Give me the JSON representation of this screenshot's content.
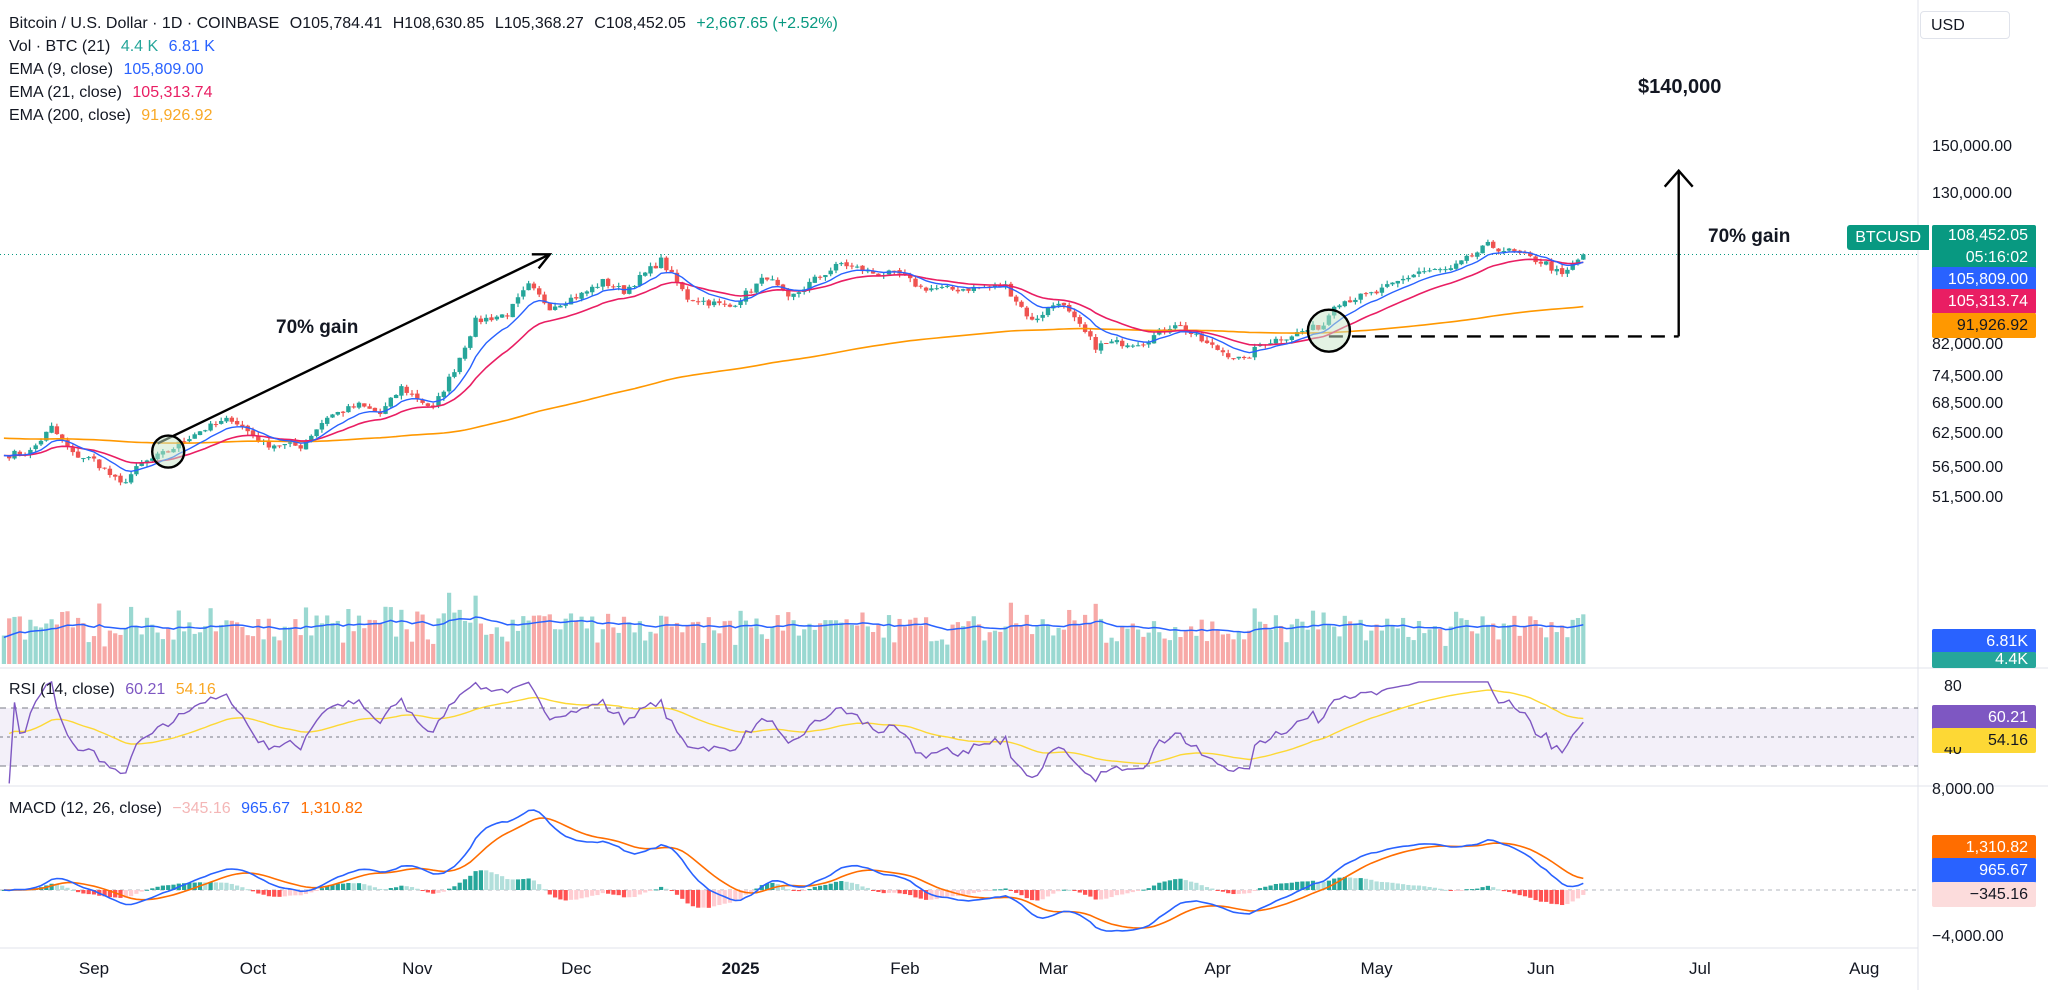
{
  "header": {
    "symbol": "Bitcoin / U.S. Dollar · 1D · COINBASE",
    "open": "O105,784.41",
    "high": "H108,630.85",
    "low": "L105,368.27",
    "close": "C108,452.05",
    "change": "+2,667.65 (+2.52%)"
  },
  "legends": {
    "vol": {
      "label": "Vol · BTC (21)",
      "v1": "4.4 K",
      "v2": "6.81 K"
    },
    "ema9": {
      "label": "EMA (9, close)",
      "value": "105,809.00"
    },
    "ema21": {
      "label": "EMA (21, close)",
      "value": "105,313.74"
    },
    "ema200": {
      "label": "EMA (200, close)",
      "value": "91,926.92"
    },
    "rsi": {
      "label": "RSI (14, close)",
      "v1": "60.21",
      "v2": "54.16"
    },
    "macd": {
      "label": "MACD (12, 26, close)",
      "v1": "−345.16",
      "v2": "965.67",
      "v3": "1,310.82"
    }
  },
  "currency": "USD",
  "price_labels": {
    "ticker": "BTCUSD",
    "last": "108,452.05",
    "countdown": "05:16:02",
    "ema9": "105,809.00",
    "ema21": "105,313.74",
    "ema200": "91,926.92",
    "vol_ma": "6.81K",
    "vol": "4.4K",
    "rsi": "60.21",
    "rsi_ma": "54.16",
    "macd_signal": "1,310.82",
    "macd": "965.67",
    "hist": "−345.16"
  },
  "annotations": {
    "target": "$140,000",
    "gain_right": "70% gain",
    "gain_left": "70% gain"
  },
  "colors": {
    "up": "#26a69a",
    "down": "#ef5350",
    "ema9": "#2962ff",
    "ema21": "#e91e63",
    "ema200": "#ff9800",
    "rsi": "#7e57c2",
    "rsi_ma": "#fdd835",
    "macd": "#2962ff",
    "signal": "#ff6d00"
  },
  "chart_data": [
    {
      "type": "candlestick",
      "title": "Bitcoin / U.S. Dollar · 1D · COINBASE",
      "x_ticks": [
        "Sep",
        "Oct",
        "Nov",
        "Dec",
        "2025",
        "Feb",
        "Mar",
        "Apr",
        "May",
        "Jun",
        "Jul",
        "Aug"
      ],
      "y_ticks": [
        150000,
        130000,
        82000,
        74500,
        68500,
        62500,
        56500,
        51500
      ],
      "y_scale": "log",
      "ylim": [
        48000,
        162000
      ],
      "close_path": [
        [
          "2024-08-15",
          58800
        ],
        [
          "2024-08-20",
          59500
        ],
        [
          "2024-08-24",
          64000
        ],
        [
          "2024-08-28",
          59000
        ],
        [
          "2024-09-01",
          58000
        ],
        [
          "2024-09-06",
          53800
        ],
        [
          "2024-09-10",
          57300
        ],
        [
          "2024-09-15",
          59500
        ],
        [
          "2024-09-20",
          63000
        ],
        [
          "2024-09-27",
          65800
        ],
        [
          "2024-10-03",
          60900
        ],
        [
          "2024-10-10",
          60500
        ],
        [
          "2024-10-15",
          66200
        ],
        [
          "2024-10-21",
          68500
        ],
        [
          "2024-10-25",
          66700
        ],
        [
          "2024-10-29",
          72300
        ],
        [
          "2024-11-04",
          67800
        ],
        [
          "2024-11-08",
          76500
        ],
        [
          "2024-11-12",
          88500
        ],
        [
          "2024-11-18",
          90500
        ],
        [
          "2024-11-22",
          98500
        ],
        [
          "2024-11-26",
          92500
        ],
        [
          "2024-12-02",
          96000
        ],
        [
          "2024-12-06",
          99800
        ],
        [
          "2024-12-10",
          97000
        ],
        [
          "2024-12-17",
          106500
        ],
        [
          "2024-12-22",
          95000
        ],
        [
          "2024-12-30",
          92500
        ],
        [
          "2025-01-06",
          101500
        ],
        [
          "2025-01-10",
          94500
        ],
        [
          "2025-01-15",
          100500
        ],
        [
          "2025-01-20",
          105500
        ],
        [
          "2025-01-26",
          102500
        ],
        [
          "2025-01-31",
          102000
        ],
        [
          "2025-02-04",
          98000
        ],
        [
          "2025-02-10",
          97500
        ],
        [
          "2025-02-20",
          98500
        ],
        [
          "2025-02-25",
          88500
        ],
        [
          "2025-03-02",
          94200
        ],
        [
          "2025-03-09",
          82000
        ],
        [
          "2025-03-12",
          82800
        ],
        [
          "2025-03-18",
          83000
        ],
        [
          "2025-03-24",
          88000
        ],
        [
          "2025-03-30",
          82500
        ],
        [
          "2025-04-06",
          78300
        ],
        [
          "2025-04-09",
          82500
        ],
        [
          "2025-04-14",
          84500
        ],
        [
          "2025-04-21",
          87500
        ],
        [
          "2025-04-23",
          93500
        ],
        [
          "2025-05-01",
          96500
        ],
        [
          "2025-05-09",
          103000
        ],
        [
          "2025-05-15",
          103500
        ],
        [
          "2025-05-22",
          111500
        ],
        [
          "2025-05-27",
          109000
        ],
        [
          "2025-06-02",
          105500
        ],
        [
          "2025-06-05",
          101500
        ],
        [
          "2025-06-09",
          108452
        ]
      ],
      "series": [
        {
          "name": "EMA (9, close)",
          "last": 105809.0
        },
        {
          "name": "EMA (21, close)",
          "last": 105313.74
        },
        {
          "name": "EMA (200, close)",
          "last": 91926.92
        }
      ],
      "annotations": [
        {
          "text": "70% gain",
          "from": [
            "2024-09-13",
            61000
          ],
          "to": [
            "2024-11-26",
            108500
          ]
        },
        {
          "text": "70% gain",
          "from": [
            "2025-06-27",
            84500
          ],
          "to": [
            "2025-06-27",
            140000
          ]
        },
        {
          "text": "$140,000"
        }
      ]
    },
    {
      "type": "bar",
      "name": "Vol · BTC (21)",
      "last": 4.4,
      "ma_last": 6.81,
      "unit": "K"
    },
    {
      "type": "line",
      "name": "RSI (14, close)",
      "y_ticks": [
        80.0,
        40.0
      ],
      "bands": [
        30,
        50,
        70
      ],
      "last": 60.21,
      "ma_last": 54.16
    },
    {
      "type": "line",
      "name": "MACD (12, 26, close)",
      "y_ticks": [
        8000.0,
        4000.0,
        -4000.0
      ],
      "last": {
        "histogram": -345.16,
        "macd": 965.67,
        "signal": 1310.82
      }
    }
  ]
}
